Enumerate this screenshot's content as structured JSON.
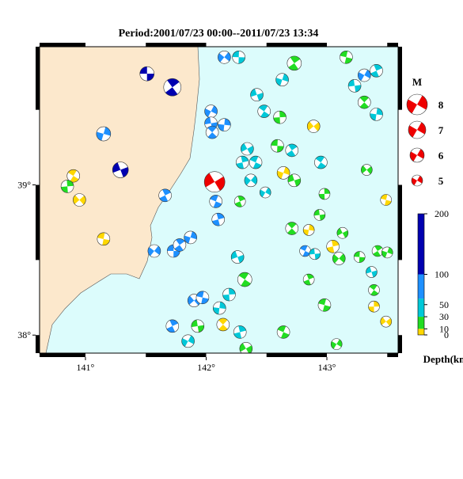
{
  "title": "Period:2001/07/23 00:00--2011/07/23 13:34",
  "lonlim": [
    140.62,
    143.59
  ],
  "latlim": [
    37.88,
    39.92
  ],
  "lon_ticks": [
    {
      "value": 141,
      "label": "141°"
    },
    {
      "value": 142,
      "label": "142°"
    },
    {
      "value": 143,
      "label": "143°"
    }
  ],
  "lat_ticks": [
    {
      "value": 39,
      "label": "39°"
    },
    {
      "value": 38,
      "label": "38°"
    }
  ],
  "land_color": "#fce8cc",
  "sea_color": "#dcfcfc",
  "legend": {
    "title": "M",
    "magnitudes": [
      8,
      7,
      6,
      5
    ],
    "color": "#ee0000"
  },
  "depth_scale": {
    "label": "Depth(km)",
    "lim": [
      0,
      200
    ],
    "ticks": [
      0,
      10,
      30,
      50,
      100,
      200
    ],
    "bands": [
      {
        "from": 0,
        "to": 10,
        "color": "#ffd700"
      },
      {
        "from": 10,
        "to": 30,
        "color": "#22dd22"
      },
      {
        "from": 30,
        "to": 60,
        "color": "#00c8d8"
      },
      {
        "from": 60,
        "to": 100,
        "color": "#1e90ff"
      },
      {
        "from": 100,
        "to": 200,
        "color": "#0000b0"
      }
    ]
  },
  "events": [
    {
      "lon": 141.51,
      "lat": 39.74,
      "mag": 6,
      "color": "#0000b0"
    },
    {
      "lon": 141.72,
      "lat": 39.65,
      "mag": 7,
      "color": "#0000b0"
    },
    {
      "lon": 141.15,
      "lat": 39.34,
      "mag": 6,
      "color": "#1e90ff"
    },
    {
      "lon": 141.29,
      "lat": 39.1,
      "mag": 6.5,
      "color": "#0000b0"
    },
    {
      "lon": 140.9,
      "lat": 39.06,
      "mag": 5.5,
      "color": "#ffd700"
    },
    {
      "lon": 140.85,
      "lat": 38.99,
      "mag": 5.5,
      "color": "#22dd22"
    },
    {
      "lon": 140.95,
      "lat": 38.9,
      "mag": 5.5,
      "color": "#ffd700"
    },
    {
      "lon": 141.15,
      "lat": 38.64,
      "mag": 5.5,
      "color": "#ffd700"
    },
    {
      "lon": 141.66,
      "lat": 38.93,
      "mag": 5.5,
      "color": "#1e90ff"
    },
    {
      "lon": 142.04,
      "lat": 39.49,
      "mag": 5.5,
      "color": "#1e90ff"
    },
    {
      "lon": 142.04,
      "lat": 39.41,
      "mag": 5.5,
      "color": "#1e90ff"
    },
    {
      "lon": 142.05,
      "lat": 39.35,
      "mag": 5.5,
      "color": "#1e90ff"
    },
    {
      "lon": 142.15,
      "lat": 39.4,
      "mag": 5.5,
      "color": "#1e90ff"
    },
    {
      "lon": 142.07,
      "lat": 39.02,
      "mag": 8,
      "color": "#ee0000"
    },
    {
      "lon": 142.08,
      "lat": 38.89,
      "mag": 5.5,
      "color": "#1e90ff"
    },
    {
      "lon": 142.1,
      "lat": 38.77,
      "mag": 5.5,
      "color": "#1e90ff"
    },
    {
      "lon": 141.57,
      "lat": 38.56,
      "mag": 5.5,
      "color": "#1e90ff"
    },
    {
      "lon": 141.73,
      "lat": 38.56,
      "mag": 5.5,
      "color": "#1e90ff"
    },
    {
      "lon": 141.78,
      "lat": 38.6,
      "mag": 5.5,
      "color": "#1e90ff"
    },
    {
      "lon": 141.87,
      "lat": 38.65,
      "mag": 5.5,
      "color": "#1e90ff"
    },
    {
      "lon": 142.26,
      "lat": 38.52,
      "mag": 5.5,
      "color": "#00c8d8"
    },
    {
      "lon": 142.32,
      "lat": 38.37,
      "mag": 6,
      "color": "#22dd22"
    },
    {
      "lon": 142.19,
      "lat": 38.27,
      "mag": 5.5,
      "color": "#00c8d8"
    },
    {
      "lon": 141.9,
      "lat": 38.23,
      "mag": 5.5,
      "color": "#1e90ff"
    },
    {
      "lon": 141.97,
      "lat": 38.25,
      "mag": 5.5,
      "color": "#1e90ff"
    },
    {
      "lon": 141.72,
      "lat": 38.06,
      "mag": 5.5,
      "color": "#1e90ff"
    },
    {
      "lon": 141.85,
      "lat": 37.96,
      "mag": 5.5,
      "color": "#00c8d8"
    },
    {
      "lon": 141.93,
      "lat": 38.06,
      "mag": 5.5,
      "color": "#22dd22"
    },
    {
      "lon": 142.14,
      "lat": 38.07,
      "mag": 5.5,
      "color": "#ffd700"
    },
    {
      "lon": 142.11,
      "lat": 38.18,
      "mag": 5.5,
      "color": "#00c8d8"
    },
    {
      "lon": 142.33,
      "lat": 37.91,
      "mag": 5.5,
      "color": "#22dd22"
    },
    {
      "lon": 142.64,
      "lat": 38.02,
      "mag": 5.5,
      "color": "#22dd22"
    },
    {
      "lon": 142.28,
      "lat": 38.02,
      "mag": 5.5,
      "color": "#00c8d8"
    },
    {
      "lon": 142.15,
      "lat": 39.85,
      "mag": 5.5,
      "color": "#1e90ff"
    },
    {
      "lon": 142.27,
      "lat": 39.85,
      "mag": 5.5,
      "color": "#00c8d8"
    },
    {
      "lon": 142.73,
      "lat": 39.81,
      "mag": 6,
      "color": "#22dd22"
    },
    {
      "lon": 142.63,
      "lat": 39.7,
      "mag": 5.5,
      "color": "#00c8d8"
    },
    {
      "lon": 142.42,
      "lat": 39.6,
      "mag": 5.5,
      "color": "#00c8d8"
    },
    {
      "lon": 142.48,
      "lat": 39.49,
      "mag": 5.5,
      "color": "#00c8d8"
    },
    {
      "lon": 142.61,
      "lat": 39.45,
      "mag": 5.5,
      "color": "#22dd22"
    },
    {
      "lon": 142.89,
      "lat": 39.39,
      "mag": 5.5,
      "color": "#ffd700"
    },
    {
      "lon": 143.16,
      "lat": 39.85,
      "mag": 5.5,
      "color": "#22dd22"
    },
    {
      "lon": 143.41,
      "lat": 39.76,
      "mag": 5.5,
      "color": "#00c8d8"
    },
    {
      "lon": 143.31,
      "lat": 39.73,
      "mag": 5.5,
      "color": "#1e90ff"
    },
    {
      "lon": 143.23,
      "lat": 39.66,
      "mag": 5.5,
      "color": "#00c8d8"
    },
    {
      "lon": 143.31,
      "lat": 39.55,
      "mag": 5.5,
      "color": "#22dd22"
    },
    {
      "lon": 143.41,
      "lat": 39.47,
      "mag": 5.5,
      "color": "#00c8d8"
    },
    {
      "lon": 142.34,
      "lat": 39.24,
      "mag": 5.5,
      "color": "#00c8d8"
    },
    {
      "lon": 142.41,
      "lat": 39.15,
      "mag": 5.5,
      "color": "#00c8d8"
    },
    {
      "lon": 142.3,
      "lat": 39.15,
      "mag": 5.5,
      "color": "#00c8d8"
    },
    {
      "lon": 142.37,
      "lat": 39.03,
      "mag": 5.5,
      "color": "#00c8d8"
    },
    {
      "lon": 142.59,
      "lat": 39.26,
      "mag": 5.5,
      "color": "#22dd22"
    },
    {
      "lon": 142.71,
      "lat": 39.23,
      "mag": 5.5,
      "color": "#00c8d8"
    },
    {
      "lon": 142.64,
      "lat": 39.08,
      "mag": 5.5,
      "color": "#ffd700"
    },
    {
      "lon": 142.73,
      "lat": 39.03,
      "mag": 5.5,
      "color": "#22dd22"
    },
    {
      "lon": 142.95,
      "lat": 39.15,
      "mag": 5.5,
      "color": "#00c8d8"
    },
    {
      "lon": 142.98,
      "lat": 38.94,
      "mag": 5,
      "color": "#22dd22"
    },
    {
      "lon": 143.33,
      "lat": 39.1,
      "mag": 5,
      "color": "#22dd22"
    },
    {
      "lon": 143.49,
      "lat": 38.9,
      "mag": 5,
      "color": "#ffd700"
    },
    {
      "lon": 142.28,
      "lat": 38.89,
      "mag": 5,
      "color": "#22dd22"
    },
    {
      "lon": 142.49,
      "lat": 38.95,
      "mag": 5,
      "color": "#00c8d8"
    },
    {
      "lon": 142.94,
      "lat": 38.8,
      "mag": 5,
      "color": "#22dd22"
    },
    {
      "lon": 142.71,
      "lat": 38.71,
      "mag": 5.5,
      "color": "#22dd22"
    },
    {
      "lon": 142.85,
      "lat": 38.7,
      "mag": 5,
      "color": "#ffd700"
    },
    {
      "lon": 143.13,
      "lat": 38.68,
      "mag": 5,
      "color": "#22dd22"
    },
    {
      "lon": 142.82,
      "lat": 38.56,
      "mag": 5,
      "color": "#1e90ff"
    },
    {
      "lon": 143.05,
      "lat": 38.59,
      "mag": 5.5,
      "color": "#ffd700"
    },
    {
      "lon": 143.1,
      "lat": 38.51,
      "mag": 5.5,
      "color": "#22dd22"
    },
    {
      "lon": 143.27,
      "lat": 38.52,
      "mag": 5,
      "color": "#22dd22"
    },
    {
      "lon": 143.42,
      "lat": 38.56,
      "mag": 5,
      "color": "#22dd22"
    },
    {
      "lon": 143.5,
      "lat": 38.55,
      "mag": 5,
      "color": "#22dd22"
    },
    {
      "lon": 143.37,
      "lat": 38.42,
      "mag": 5,
      "color": "#00c8d8"
    },
    {
      "lon": 143.39,
      "lat": 38.3,
      "mag": 5,
      "color": "#22dd22"
    },
    {
      "lon": 143.39,
      "lat": 38.19,
      "mag": 5,
      "color": "#ffd700"
    },
    {
      "lon": 143.49,
      "lat": 38.09,
      "mag": 5,
      "color": "#ffd700"
    },
    {
      "lon": 142.98,
      "lat": 38.2,
      "mag": 5.5,
      "color": "#22dd22"
    },
    {
      "lon": 142.85,
      "lat": 38.37,
      "mag": 5,
      "color": "#22dd22"
    },
    {
      "lon": 143.08,
      "lat": 37.94,
      "mag": 5,
      "color": "#22dd22"
    },
    {
      "lon": 142.9,
      "lat": 38.54,
      "mag": 5,
      "color": "#00c8d8"
    }
  ]
}
